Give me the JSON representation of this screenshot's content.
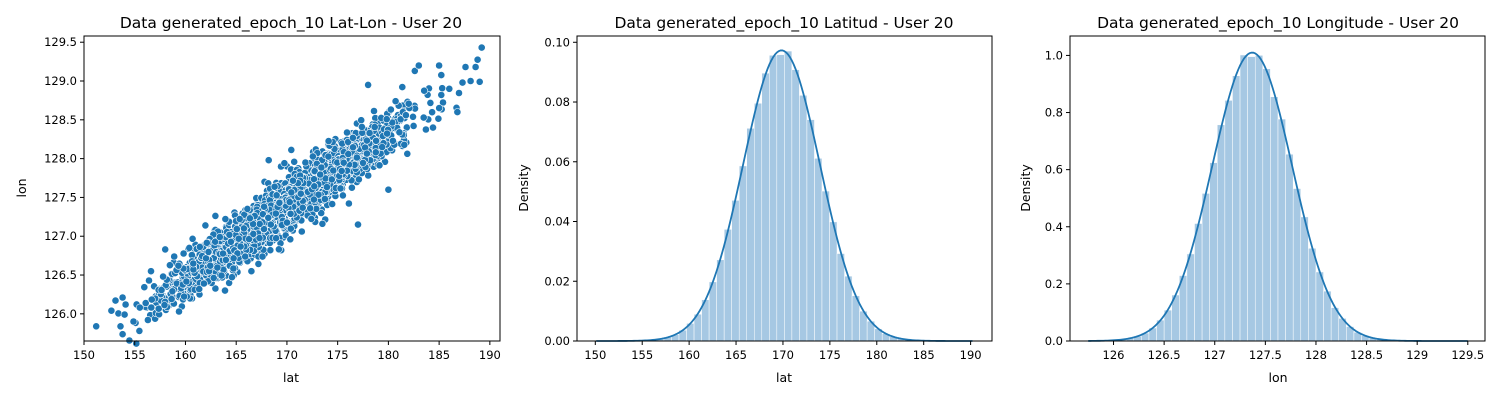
{
  "colors": {
    "primary": "#1f77b4",
    "fill": "#a6c8e3",
    "bar_edge": "#ffffff"
  },
  "chart_data": [
    {
      "type": "scatter",
      "title": "Data generated_epoch_10 Lat-Lon - User 20",
      "xlabel": "lat",
      "ylabel": "lon",
      "xlim": [
        150,
        191
      ],
      "ylim": [
        125.65,
        129.58
      ],
      "xticks": [
        150,
        155,
        160,
        165,
        170,
        175,
        180,
        185,
        190
      ],
      "yticks": [
        126.0,
        126.5,
        127.0,
        127.5,
        128.0,
        128.5,
        129.0,
        129.5
      ],
      "grid": false,
      "cloud": {
        "n_points": 2600,
        "lat_mean": 170.0,
        "lat_sd": 5.4,
        "lon_intercept": 127.4,
        "lon_slope_per_lat": 0.0943,
        "lon_residual_sd": 0.17,
        "lat_clip": [
          151,
          189.3
        ]
      },
      "points": [
        {
          "x": 151.2,
          "y": 125.84
        },
        {
          "x": 153.6,
          "y": 125.84
        },
        {
          "x": 152.7,
          "y": 126.04
        },
        {
          "x": 153.1,
          "y": 126.17
        },
        {
          "x": 153.8,
          "y": 126.21
        },
        {
          "x": 154.1,
          "y": 126.12
        },
        {
          "x": 154.0,
          "y": 125.99
        },
        {
          "x": 155.5,
          "y": 126.08
        },
        {
          "x": 156.3,
          "y": 125.92
        },
        {
          "x": 156.6,
          "y": 126.55
        },
        {
          "x": 157.8,
          "y": 126.48
        },
        {
          "x": 158.0,
          "y": 126.83
        },
        {
          "x": 159.3,
          "y": 126.62
        },
        {
          "x": 163.9,
          "y": 126.3
        },
        {
          "x": 166.5,
          "y": 126.55
        },
        {
          "x": 168.2,
          "y": 127.98
        },
        {
          "x": 173.5,
          "y": 127.16
        },
        {
          "x": 177.0,
          "y": 127.15
        },
        {
          "x": 178.0,
          "y": 128.95
        },
        {
          "x": 180.0,
          "y": 127.6
        },
        {
          "x": 182.6,
          "y": 129.13
        },
        {
          "x": 183.0,
          "y": 129.2
        },
        {
          "x": 184.4,
          "y": 128.4
        },
        {
          "x": 185.0,
          "y": 129.2
        },
        {
          "x": 186.0,
          "y": 128.9
        },
        {
          "x": 186.8,
          "y": 128.6
        },
        {
          "x": 187.3,
          "y": 128.98
        },
        {
          "x": 187.6,
          "y": 129.18
        },
        {
          "x": 188.1,
          "y": 129.0
        },
        {
          "x": 188.6,
          "y": 129.18
        },
        {
          "x": 189.0,
          "y": 128.99
        },
        {
          "x": 189.2,
          "y": 129.43
        }
      ]
    },
    {
      "type": "histogram_kde",
      "title": "Data generated_epoch_10 Latitud - User 20",
      "xlabel": "lat",
      "ylabel": "Density",
      "xlim": [
        148.05,
        192.28
      ],
      "ylim": [
        0,
        0.1021
      ],
      "xticks": [
        150,
        155,
        160,
        165,
        170,
        175,
        180,
        185,
        190
      ],
      "yticks": [
        0.0,
        0.02,
        0.04,
        0.06,
        0.08,
        0.1
      ],
      "ytick_labels": [
        "0.00",
        "0.02",
        "0.04",
        "0.06",
        "0.08",
        "0.10"
      ],
      "grid": false,
      "bins": {
        "start": 150.1,
        "end": 190.2,
        "count": 50
      },
      "distribution": {
        "mean": 169.85,
        "sd": 4.1,
        "peak": 0.0973
      }
    },
    {
      "type": "histogram_kde",
      "title": "Data generated_epoch_10 Longitude - User 20",
      "xlabel": "lon",
      "ylabel": "Density",
      "xlim": [
        125.57,
        129.67
      ],
      "ylim": [
        0,
        1.068
      ],
      "xticks": [
        126.0,
        126.5,
        127.0,
        127.5,
        128.0,
        128.5,
        129.0,
        129.5
      ],
      "yticks": [
        0.0,
        0.2,
        0.4,
        0.6,
        0.8,
        1.0
      ],
      "grid": false,
      "bins": {
        "start": 125.75,
        "end": 129.5,
        "count": 50
      },
      "distribution": {
        "mean": 127.37,
        "sd": 0.395,
        "peak": 1.01
      }
    }
  ]
}
